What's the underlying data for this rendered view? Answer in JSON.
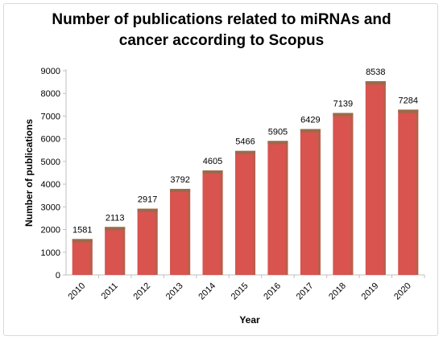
{
  "chart_data": {
    "type": "bar",
    "title_line1": "Number of publications related to miRNAs and",
    "title_line2": "cancer according to Scopus",
    "xlabel": "Year",
    "ylabel": "Number of publications",
    "categories": [
      "2010",
      "2011",
      "2012",
      "2013",
      "2014",
      "2015",
      "2016",
      "2017",
      "2018",
      "2019",
      "2020"
    ],
    "values": [
      1581,
      2113,
      2917,
      3792,
      4605,
      5466,
      5905,
      6429,
      7139,
      8538,
      7284
    ],
    "ylim": [
      0,
      9000
    ],
    "yticks": [
      0,
      1000,
      2000,
      3000,
      4000,
      5000,
      6000,
      7000,
      8000,
      9000
    ],
    "grid": false,
    "legend": "none",
    "bar_color": "#d9534f",
    "bar_cap_color": "#9a6b4a"
  }
}
